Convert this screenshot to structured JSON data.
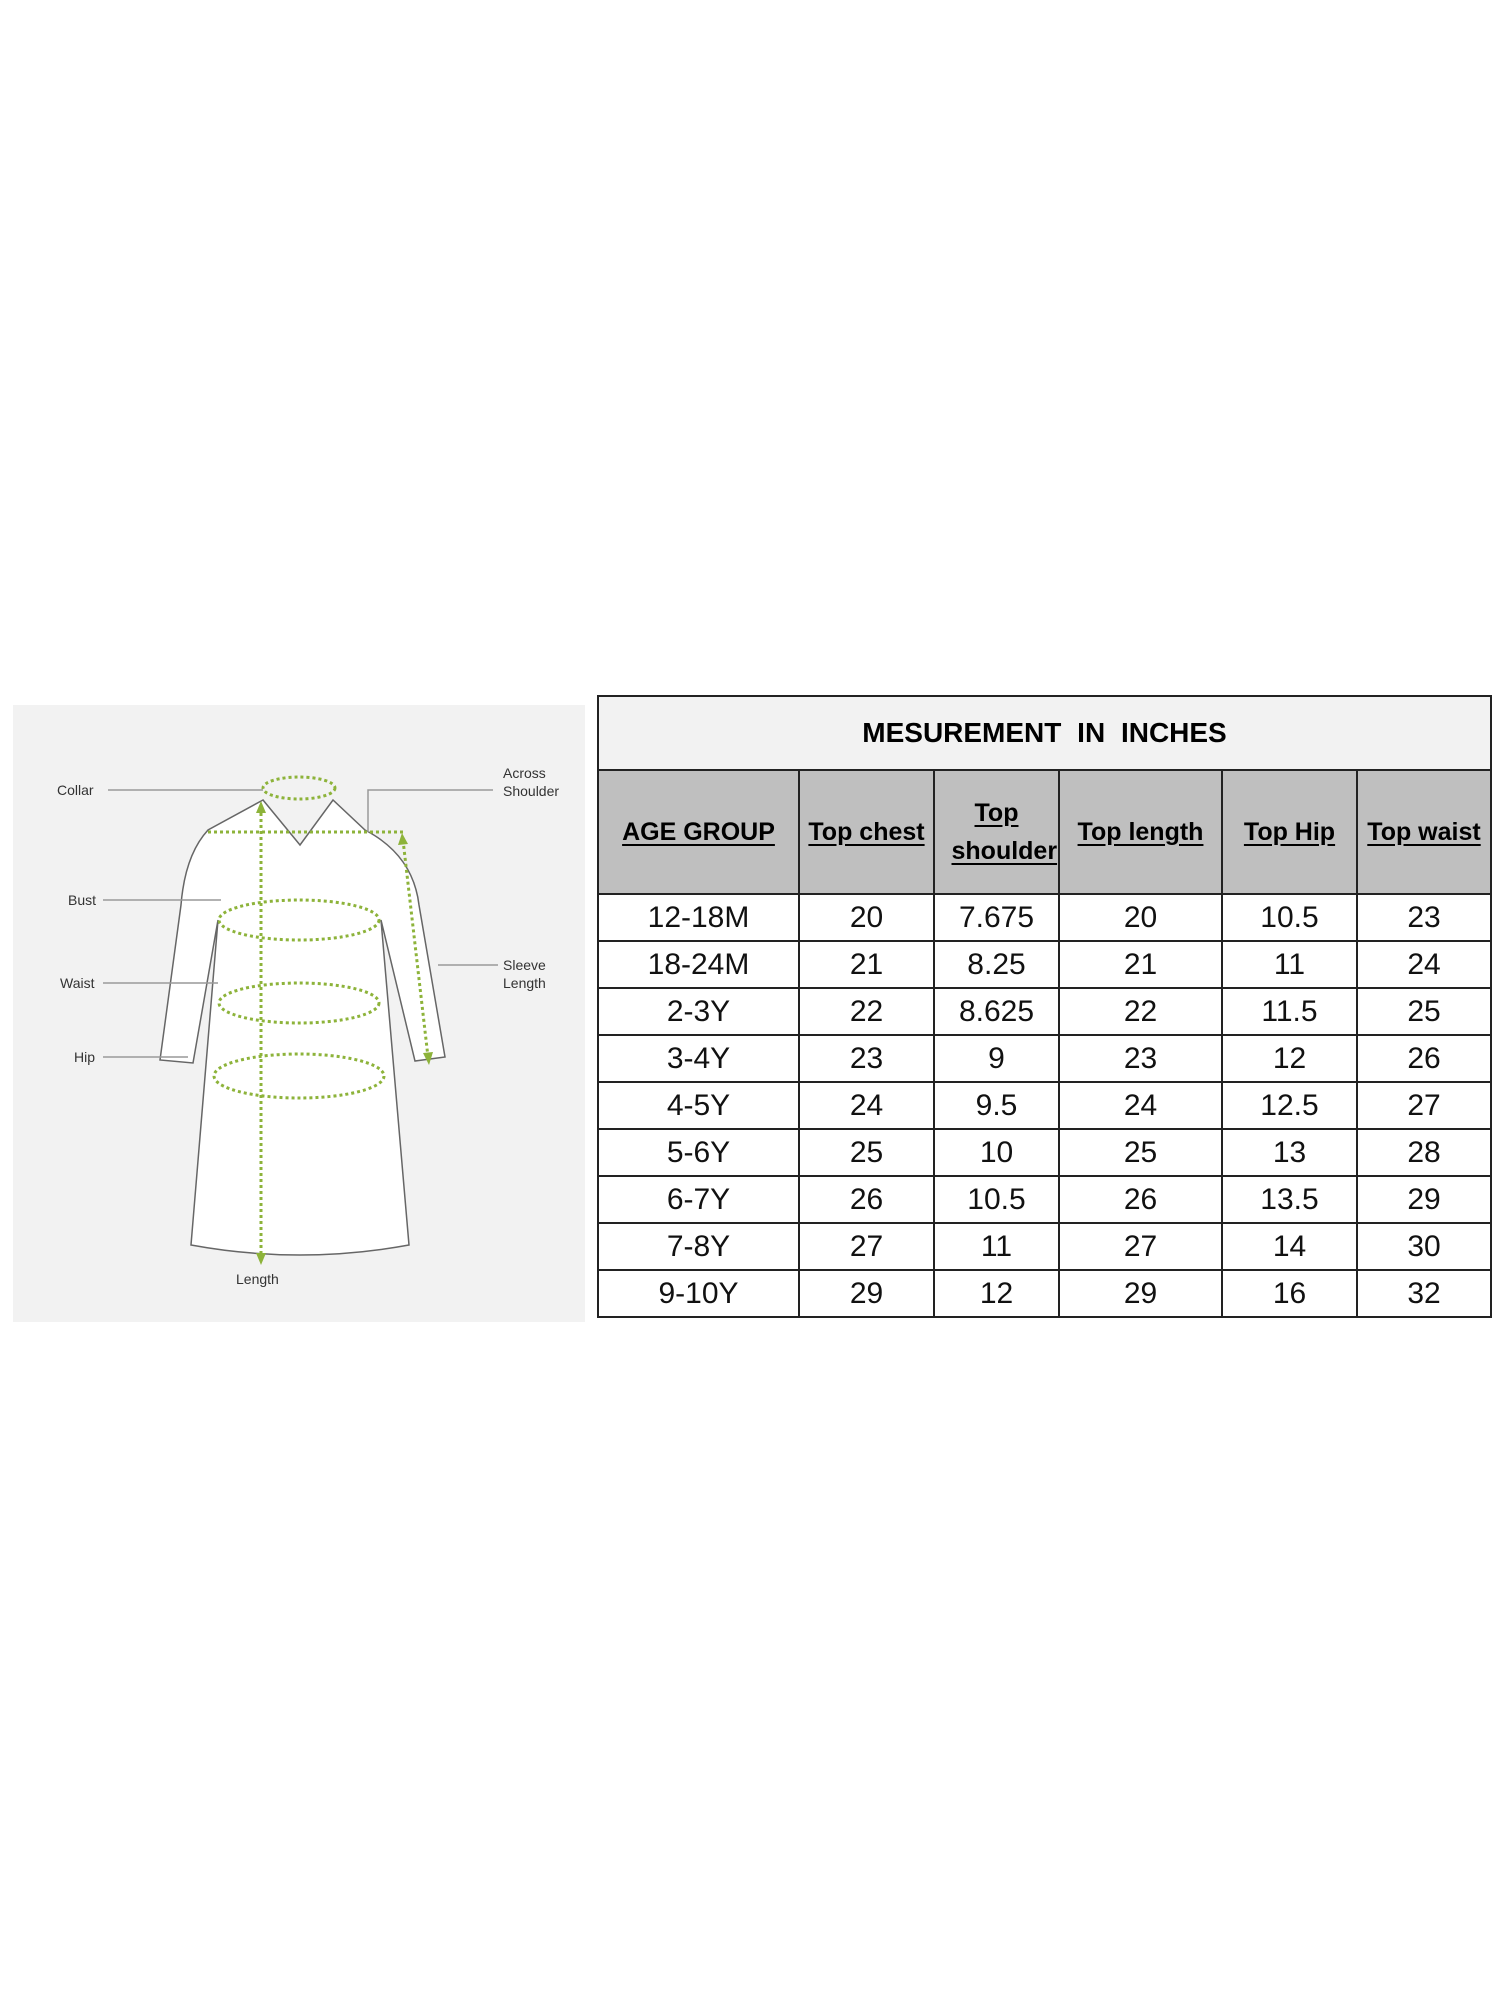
{
  "diagram": {
    "labels": {
      "collar": "Collar",
      "across_shoulder": [
        "Across",
        "Shoulder"
      ],
      "bust": "Bust",
      "waist": "Waist",
      "hip": "Hip",
      "sleeve_length": [
        "Sleeve",
        "Length"
      ],
      "length": "Length"
    },
    "colors": {
      "measure_line": "#8db33a",
      "background": "#f2f2f2"
    }
  },
  "table": {
    "title": "MESUREMENT  IN  INCHES",
    "headers": [
      "AGE GROUP",
      "Top chest",
      "Top shoulder",
      "Top length",
      "Top Hip",
      "Top waist"
    ],
    "rows": [
      [
        "12-18M",
        "20",
        "7.675",
        "20",
        "10.5",
        "23"
      ],
      [
        "18-24M",
        "21",
        "8.25",
        "21",
        "11",
        "24"
      ],
      [
        "2-3Y",
        "22",
        "8.625",
        "22",
        "11.5",
        "25"
      ],
      [
        "3-4Y",
        "23",
        "9",
        "23",
        "12",
        "26"
      ],
      [
        "4-5Y",
        "24",
        "9.5",
        "24",
        "12.5",
        "27"
      ],
      [
        "5-6Y",
        "25",
        "10",
        "25",
        "13",
        "28"
      ],
      [
        "6-7Y",
        "26",
        "10.5",
        "26",
        "13.5",
        "29"
      ],
      [
        "7-8Y",
        "27",
        "11",
        "27",
        "14",
        "30"
      ],
      [
        "9-10Y",
        "29",
        "12",
        "29",
        "16",
        "32"
      ]
    ],
    "colors": {
      "header_bg": "#bfbfbf",
      "title_bg": "#f2f2f2"
    }
  }
}
